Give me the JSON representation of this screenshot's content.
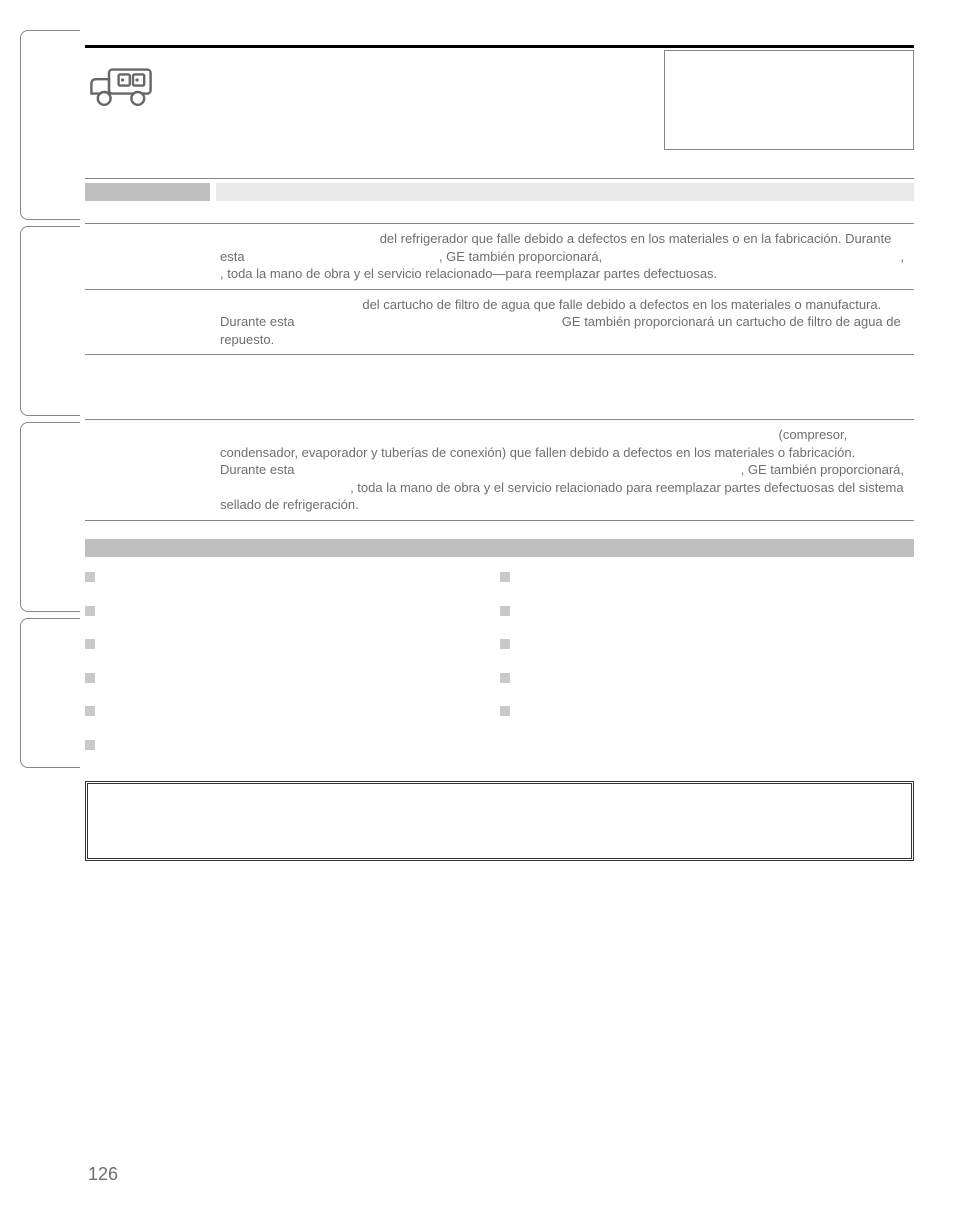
{
  "page_number": "126",
  "warranty_rows": [
    {
      "text_parts": [
        {
          "t": " del refrigerador que falle debido a defectos en los materiales o en la fabricación. Durante esta ",
          "lead_spaces": 28
        },
        {
          "t": ", GE también proporcionará, "
        },
        {
          "t": ", toda la mano de obra y el servicio relacionado—para reemplazar partes defectuosas.",
          "trail_comma_right": true
        }
      ]
    },
    {
      "text_parts": [
        {
          "t": " del cartucho de filtro de agua que falle debido a defectos en los materiales o manufactura. Durante esta ",
          "lead_spaces": 24
        },
        {
          "t": " GE también proporcionará un cartucho de filtro de agua de repuesto."
        }
      ]
    }
  ],
  "warranty_row_2": {
    "text_parts": [
      {
        "t": " (compresor, condensador, evaporador y tuberías de conexión) que fallen debido a defectos en los materiales o fabricación. Durante esta ",
        "right_align_first": true
      },
      {
        "t": ", GE también proporcionará, "
      },
      {
        "t": ", toda la mano de obra y el servicio relacionado para reemplazar partes defectuosas del sistema sellado de refrigeración."
      }
    ]
  },
  "exclusions_left_count": 6,
  "exclusions_right_count": 5
}
